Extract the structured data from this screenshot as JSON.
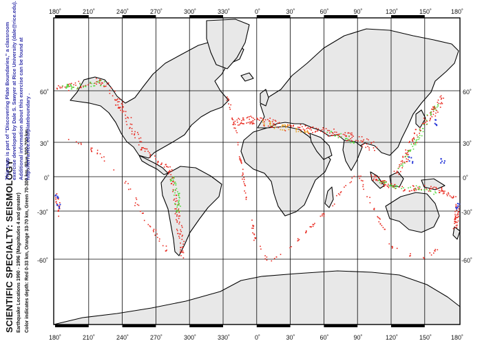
{
  "credit": {
    "line1": "This map is part of \"Discovering Plate Boundaries,\" a classroom",
    "line2": "exercise developed by Dale S. Sawyer at Rice University (dale@rice.edu).",
    "line3": "Additional information about this exercise can be found at",
    "line4": "http://terra.rice.edu/plateboundary ."
  },
  "title": "SCIENTIFIC SPECIALTY: SEISMOLOGY",
  "subtitle1": "Earthquake Locations  1990 - 1996 (Magnitudes 4 and greater)",
  "subtitle2": "Color indicates depth: Red 0-33 km, Orange 33-70 km, Green 70-300 km, Blue 300-700 km",
  "lon_labels": [
    "180˚",
    "210˚",
    "240˚",
    "270˚",
    "300˚",
    "330˚",
    "0˚",
    "30˚",
    "60˚",
    "90˚",
    "120˚",
    "150˚",
    "180˚"
  ],
  "lat_labels": [
    "60˚",
    "30˚",
    "0˚",
    "-30˚",
    "-60˚"
  ],
  "colors": {
    "land": "#e8e8e8",
    "coast": "#000000",
    "grid": "#000000",
    "shallow": "#e8261c",
    "intermediate": "#e8a020",
    "deep_green": "#4fd93a",
    "deep_blue": "#2838d8"
  }
}
